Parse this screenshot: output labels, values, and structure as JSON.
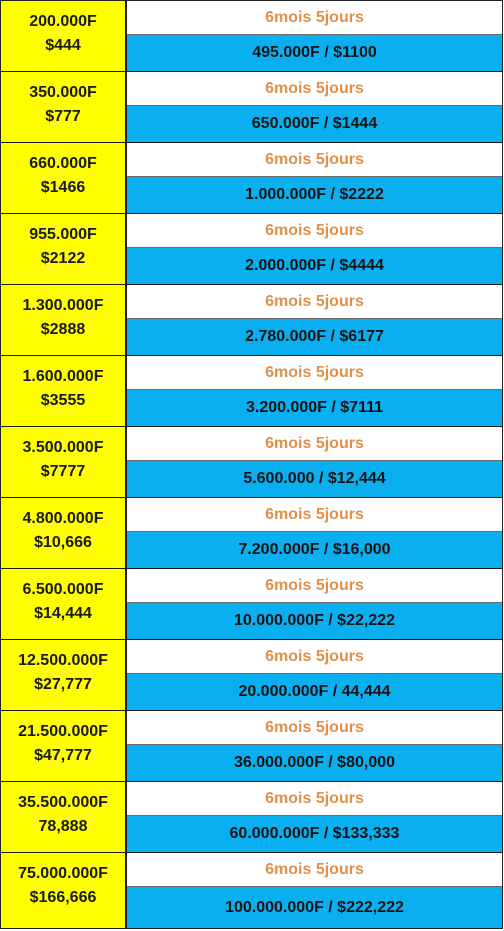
{
  "colors": {
    "invest_bg": "#ffff00",
    "return_bg": "#0aaff0",
    "duration_text": "#e0904a",
    "border": "#1a1a1a"
  },
  "rows": [
    {
      "invest": "200.000F",
      "invest_usd": "$444",
      "duration": "6mois 5jours",
      "return": "495.000F / $1100"
    },
    {
      "invest": "350.000F",
      "invest_usd": "$777",
      "duration": "6mois 5jours",
      "return": "650.000F / $1444"
    },
    {
      "invest": "660.000F",
      "invest_usd": "$1466",
      "duration": "6mois 5jours",
      "return": "1.000.000F / $2222"
    },
    {
      "invest": "955.000F",
      "invest_usd": "$2122",
      "duration": "6mois 5jours",
      "return": "2.000.000F / $4444"
    },
    {
      "invest": "1.300.000F",
      "invest_usd": "$2888",
      "duration": "6mois 5jours",
      "return": "2.780.000F / $6177"
    },
    {
      "invest": "1.600.000F",
      "invest_usd": "$3555",
      "duration": "6mois 5jours",
      "return": "3.200.000F / $7111"
    },
    {
      "invest": "3.500.000F",
      "invest_usd": "$7777",
      "duration": "6mois 5jours",
      "return": "5.600.000 / $12,444"
    },
    {
      "invest": "4.800.000F",
      "invest_usd": "$10,666",
      "duration": "6mois 5jours",
      "return": "7.200.000F / $16,000"
    },
    {
      "invest": "6.500.000F",
      "invest_usd": "$14,444",
      "duration": "6mois 5jours",
      "return": "10.000.000F / $22,222"
    },
    {
      "invest": "12.500.000F",
      "invest_usd": "$27,777",
      "duration": "6mois 5jours",
      "return": "20.000.000F / 44,444"
    },
    {
      "invest": "21.500.000F",
      "invest_usd": "$47,777",
      "duration": "6mois 5jours",
      "return": "36.000.000F / $80,000"
    },
    {
      "invest": "35.500.000F",
      "invest_usd": "78,888",
      "duration": "6mois 5jours",
      "return": "60.000.000F / $133,333"
    },
    {
      "invest": "75.000.000F",
      "invest_usd": "$166,666",
      "duration": "6mois 5jours",
      "return": "100.000.000F / $222,222"
    }
  ]
}
